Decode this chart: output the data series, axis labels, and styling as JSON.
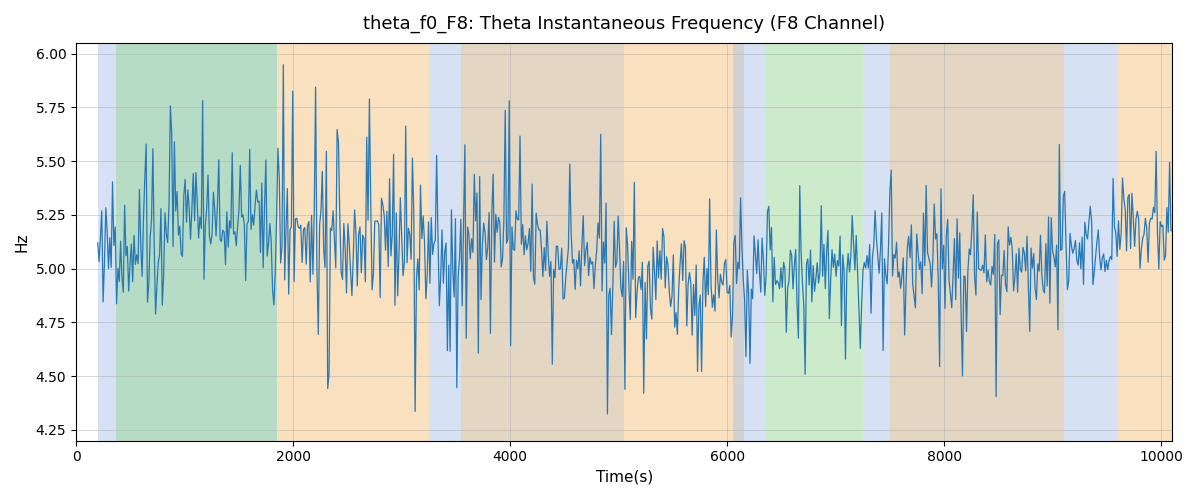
{
  "title": "theta_f0_F8: Theta Instantaneous Frequency (F8 Channel)",
  "xlabel": "Time(s)",
  "ylabel": "Hz",
  "xlim": [
    200,
    10100
  ],
  "ylim": [
    4.2,
    6.05
  ],
  "yticks": [
    4.25,
    4.5,
    4.75,
    5.0,
    5.25,
    5.5,
    5.75,
    6.0
  ],
  "line_color": "#2878b5",
  "line_width": 0.9,
  "background_color": "#ffffff",
  "grid_color": "#b0b0b0",
  "seed": 42,
  "n_points": 800,
  "x_start": 200,
  "x_end": 10100,
  "mean_freq": 5.05,
  "regions": [
    {
      "xmin": 200,
      "xmax": 1850,
      "color": "#aec6e8",
      "alpha": 0.5
    },
    {
      "xmin": 370,
      "xmax": 1850,
      "color": "#98d898",
      "alpha": 0.5
    },
    {
      "xmin": 1850,
      "xmax": 3250,
      "color": "#f5c88a",
      "alpha": 0.55
    },
    {
      "xmin": 3250,
      "xmax": 5050,
      "color": "#aec6e8",
      "alpha": 0.5
    },
    {
      "xmin": 3550,
      "xmax": 5050,
      "color": "#f5c88a",
      "alpha": 0.45
    },
    {
      "xmin": 5050,
      "xmax": 6150,
      "color": "#f5c88a",
      "alpha": 0.55
    },
    {
      "xmin": 6050,
      "xmax": 6350,
      "color": "#aec6e8",
      "alpha": 0.5
    },
    {
      "xmin": 6350,
      "xmax": 7250,
      "color": "#98d898",
      "alpha": 0.5
    },
    {
      "xmin": 7250,
      "xmax": 9600,
      "color": "#aec6e8",
      "alpha": 0.5
    },
    {
      "xmin": 7500,
      "xmax": 9100,
      "color": "#f5c88a",
      "alpha": 0.45
    },
    {
      "xmin": 9600,
      "xmax": 10100,
      "color": "#f5c88a",
      "alpha": 0.55
    }
  ],
  "title_fontsize": 13,
  "label_fontsize": 11,
  "tick_fontsize": 10
}
